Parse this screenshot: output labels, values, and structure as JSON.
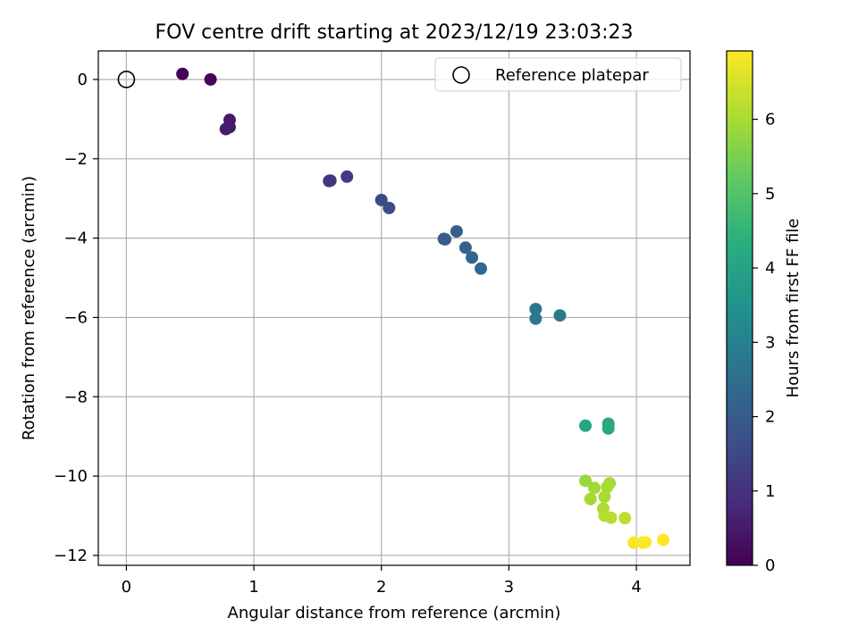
{
  "chart_data": {
    "type": "scatter",
    "title": "FOV centre drift starting at 2023/12/19 23:03:23",
    "xlabel": "Angular distance from reference (arcmin)",
    "ylabel": "Rotation from reference (arcmin)",
    "xlim": [
      -0.22,
      4.42
    ],
    "ylim": [
      -12.25,
      0.72
    ],
    "xticks": [
      0,
      1,
      2,
      3,
      4
    ],
    "yticks": [
      0,
      -2,
      -4,
      -6,
      -8,
      -10,
      -12
    ],
    "grid": true,
    "legend": {
      "placement": "top-right",
      "entries": [
        "Reference platepar"
      ]
    },
    "reference_point": {
      "x": 0,
      "y": 0
    },
    "colorbar": {
      "label": "Hours from first FF file",
      "colormap": "viridis",
      "range": [
        0,
        6.92
      ],
      "ticks": [
        0,
        1,
        2,
        3,
        4,
        5,
        6
      ]
    },
    "series": [
      {
        "points": [
          {
            "x": 0.44,
            "y": 0.14,
            "c": 0.05
          },
          {
            "x": 0.66,
            "y": 0.0,
            "c": 0.1
          },
          {
            "x": 0.81,
            "y": -1.02,
            "c": 0.45
          },
          {
            "x": 0.81,
            "y": -1.2,
            "c": 0.5
          },
          {
            "x": 0.78,
            "y": -1.25,
            "c": 0.55
          },
          {
            "x": 1.59,
            "y": -2.56,
            "c": 1.0
          },
          {
            "x": 1.6,
            "y": -2.55,
            "c": 1.05
          },
          {
            "x": 1.73,
            "y": -2.45,
            "c": 1.2
          },
          {
            "x": 2.0,
            "y": -3.04,
            "c": 1.55
          },
          {
            "x": 2.06,
            "y": -3.24,
            "c": 1.6
          },
          {
            "x": 2.49,
            "y": -4.02,
            "c": 2.0
          },
          {
            "x": 2.5,
            "y": -4.03,
            "c": 2.05
          },
          {
            "x": 2.59,
            "y": -3.83,
            "c": 2.1
          },
          {
            "x": 2.66,
            "y": -4.24,
            "c": 2.2
          },
          {
            "x": 2.71,
            "y": -4.49,
            "c": 2.25
          },
          {
            "x": 2.78,
            "y": -4.77,
            "c": 2.3
          },
          {
            "x": 3.21,
            "y": -5.79,
            "c": 2.7
          },
          {
            "x": 3.21,
            "y": -6.03,
            "c": 2.75
          },
          {
            "x": 3.4,
            "y": -5.95,
            "c": 2.8
          },
          {
            "x": 3.6,
            "y": -8.73,
            "c": 4.05
          },
          {
            "x": 3.78,
            "y": -8.68,
            "c": 4.1
          },
          {
            "x": 3.78,
            "y": -8.8,
            "c": 4.15
          },
          {
            "x": 3.6,
            "y": -10.12,
            "c": 5.85
          },
          {
            "x": 3.67,
            "y": -10.3,
            "c": 5.9
          },
          {
            "x": 3.79,
            "y": -10.18,
            "c": 5.95
          },
          {
            "x": 3.77,
            "y": -10.28,
            "c": 6.0
          },
          {
            "x": 3.64,
            "y": -10.58,
            "c": 5.95
          },
          {
            "x": 3.75,
            "y": -10.52,
            "c": 6.0
          },
          {
            "x": 3.74,
            "y": -10.82,
            "c": 6.05
          },
          {
            "x": 3.75,
            "y": -11.0,
            "c": 6.1
          },
          {
            "x": 3.8,
            "y": -11.05,
            "c": 6.15
          },
          {
            "x": 3.91,
            "y": -11.06,
            "c": 6.2
          },
          {
            "x": 3.98,
            "y": -11.68,
            "c": 6.85
          },
          {
            "x": 4.05,
            "y": -11.68,
            "c": 6.88
          },
          {
            "x": 4.07,
            "y": -11.67,
            "c": 6.9
          },
          {
            "x": 4.21,
            "y": -11.61,
            "c": 6.92
          }
        ]
      }
    ]
  }
}
